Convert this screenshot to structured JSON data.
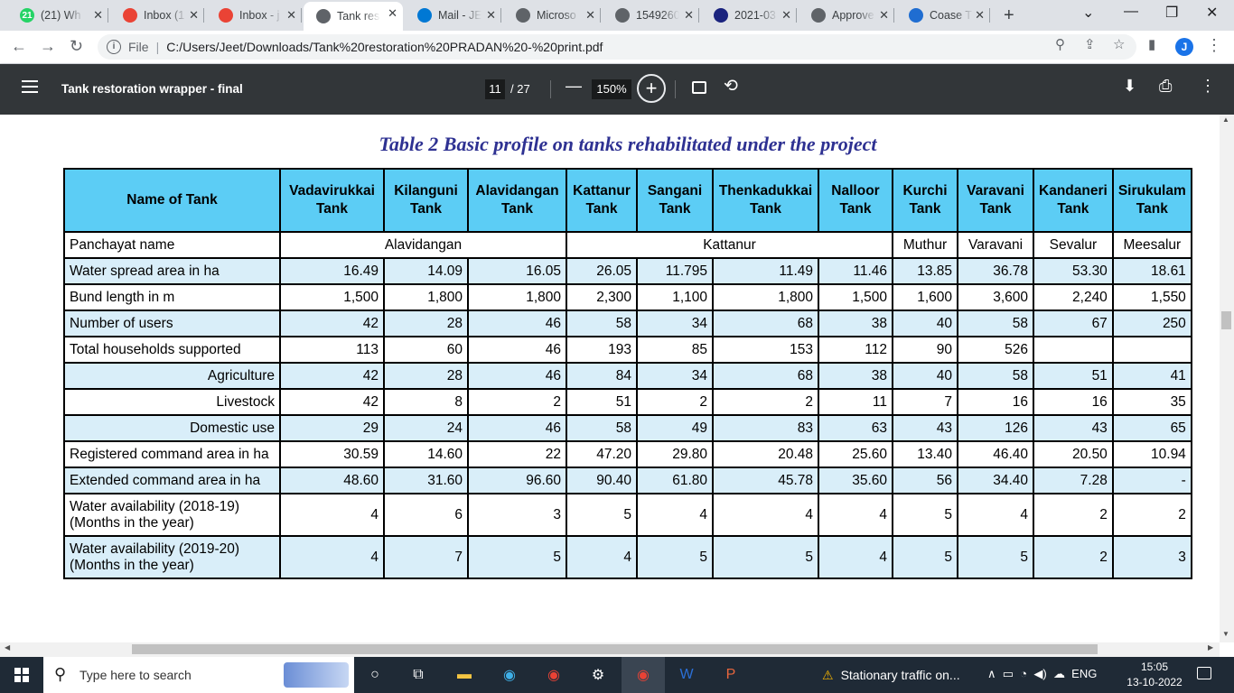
{
  "browser": {
    "tabs": [
      {
        "title": "(21) Wh",
        "icon": "whatsapp-icon",
        "badge": "21",
        "color": "#25d366"
      },
      {
        "title": "Inbox (1",
        "icon": "gmail-icon",
        "color": "#ea4335"
      },
      {
        "title": "Inbox - j",
        "icon": "gmail-icon",
        "color": "#ea4335"
      },
      {
        "title": "Tank res",
        "icon": "globe-icon",
        "active": true,
        "color": "#5f6368"
      },
      {
        "title": "Mail - JE",
        "icon": "outlook-icon",
        "color": "#0078d4"
      },
      {
        "title": "Microso",
        "icon": "globe-icon",
        "color": "#5f6368"
      },
      {
        "title": "1549260",
        "icon": "globe-icon",
        "color": "#5f6368"
      },
      {
        "title": "2021-03",
        "icon": "site-icon",
        "color": "#1a237e"
      },
      {
        "title": "Approve",
        "icon": "globe-icon",
        "color": "#5f6368"
      },
      {
        "title": "Coase T",
        "icon": "b-icon",
        "color": "#1f6dd1"
      }
    ],
    "new_tab": "+",
    "address": {
      "scheme_label": "File",
      "url": "C:/Users/Jeet/Downloads/Tank%20restoration%20PRADAN%20-%20print.pdf"
    },
    "profile_initial": "J"
  },
  "pdf_toolbar": {
    "title": "Tank restoration wrapper - final",
    "page_current": "11",
    "page_total": "/ 27",
    "zoom": "150%"
  },
  "document": {
    "caption": "Table 2 Basic profile on tanks rehabilitated under the project",
    "header_label": "Name of Tank",
    "tank_names": [
      [
        "Vadavirukkai",
        "Tank"
      ],
      [
        "Kilanguni",
        "Tank"
      ],
      [
        "Alavidangan",
        "Tank"
      ],
      [
        "Kattanur",
        "Tank"
      ],
      [
        "Sangani",
        "Tank"
      ],
      [
        "Thenkadukkai",
        "Tank"
      ],
      [
        "Nalloor",
        "Tank"
      ],
      [
        "Kurchi",
        "Tank"
      ],
      [
        "Varavani",
        "Tank"
      ],
      [
        "Kandaneri",
        "Tank"
      ],
      [
        "Sirukulam",
        "Tank"
      ]
    ],
    "panchayat": {
      "label": "Panchayat name",
      "groups": [
        "Alavidangan",
        "Kattanur",
        "Muthur",
        "Varavani",
        "Sevalur",
        "Meesalur"
      ]
    },
    "rows": [
      {
        "label": "Water spread area in ha",
        "values": [
          "16.49",
          "14.09",
          "16.05",
          "26.05",
          "11.795",
          "11.49",
          "11.46",
          "13.85",
          "36.78",
          "53.30",
          "18.61"
        ]
      },
      {
        "label": "Bund length in m",
        "values": [
          "1,500",
          "1,800",
          "1,800",
          "2,300",
          "1,100",
          "1,800",
          "1,500",
          "1,600",
          "3,600",
          "2,240",
          "1,550"
        ]
      },
      {
        "label": "Number of users",
        "values": [
          "42",
          "28",
          "46",
          "58",
          "34",
          "68",
          "38",
          "40",
          "58",
          "67",
          "250"
        ]
      },
      {
        "label": "Total households supported",
        "values": [
          "113",
          "60",
          "46",
          "193",
          "85",
          "153",
          "112",
          "90",
          "526",
          "",
          ""
        ]
      },
      {
        "label": "Agriculture",
        "values": [
          "42",
          "28",
          "46",
          "84",
          "34",
          "68",
          "38",
          "40",
          "58",
          "51",
          "41"
        ]
      },
      {
        "label": "Livestock",
        "values": [
          "42",
          "8",
          "2",
          "51",
          "2",
          "2",
          "11",
          "7",
          "16",
          "16",
          "35"
        ]
      },
      {
        "label": "Domestic use",
        "values": [
          "29",
          "24",
          "46",
          "58",
          "49",
          "83",
          "63",
          "43",
          "126",
          "43",
          "65"
        ]
      },
      {
        "label": "Registered command area in ha",
        "values": [
          "30.59",
          "14.60",
          "22",
          "47.20",
          "29.80",
          "20.48",
          "25.60",
          "13.40",
          "46.40",
          "20.50",
          "10.94"
        ]
      },
      {
        "label": "Extended command area in ha",
        "values": [
          "48.60",
          "31.60",
          "96.60",
          "90.40",
          "61.80",
          "45.78",
          "35.60",
          "56",
          "34.40",
          "7.28",
          "-"
        ]
      },
      {
        "label": [
          "Water availability (2018-19)",
          "(Months in the year)"
        ],
        "values": [
          "4",
          "6",
          "3",
          "5",
          "4",
          "4",
          "4",
          "5",
          "4",
          "2",
          "2"
        ]
      },
      {
        "label": [
          "Water availability (2019-20)",
          "(Months in the year)"
        ],
        "values": [
          "4",
          "7",
          "5",
          "4",
          "5",
          "5",
          "4",
          "5",
          "5",
          "2",
          "3"
        ]
      }
    ]
  },
  "taskbar": {
    "search_placeholder": "Type here to search",
    "weather": "Stationary traffic on...",
    "language": "ENG",
    "time": "15:05",
    "date": "13-10-2022"
  }
}
